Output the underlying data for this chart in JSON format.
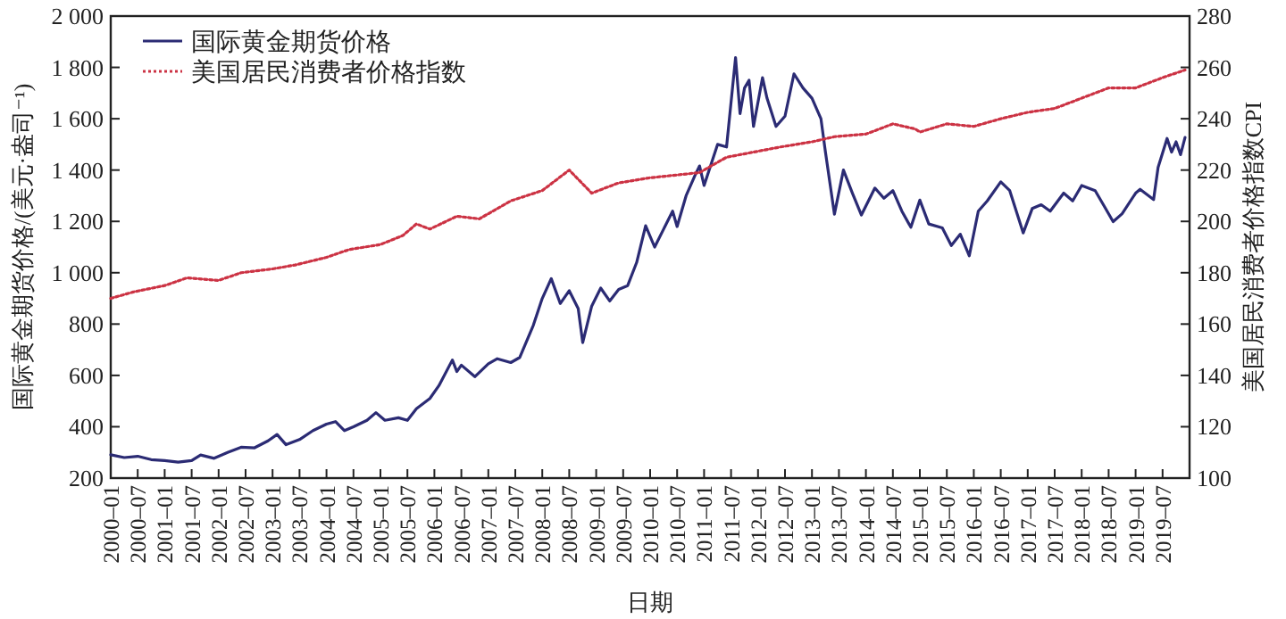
{
  "chart_data": {
    "type": "line",
    "xlabel": "日期",
    "ylabel": "国际黄金期货价格/(美元·盎司⁻¹)",
    "y2label": "美国居民消费者价格指数CPI",
    "legend": "top left",
    "xlim": [
      "2000-01",
      "2020-01"
    ],
    "ylim": [
      200,
      2000
    ],
    "y2lim": [
      100,
      280
    ],
    "xticks": [
      {
        "value": "2000-01",
        "label": "2000–01"
      },
      {
        "value": "2000-07",
        "label": "2000–07"
      },
      {
        "value": "2001-01",
        "label": "2001–01"
      },
      {
        "value": "2001-07",
        "label": "2001–07"
      },
      {
        "value": "2002-01",
        "label": "2002–01"
      },
      {
        "value": "2002-07",
        "label": "2002–07"
      },
      {
        "value": "2003-01",
        "label": "2003–01"
      },
      {
        "value": "2003-07",
        "label": "2003–07"
      },
      {
        "value": "2004-01",
        "label": "2004–01"
      },
      {
        "value": "2004-07",
        "label": "2004–07"
      },
      {
        "value": "2005-01",
        "label": "2005–01"
      },
      {
        "value": "2005-07",
        "label": "2005–07"
      },
      {
        "value": "2006-01",
        "label": "2006–01"
      },
      {
        "value": "2006-07",
        "label": "2006–07"
      },
      {
        "value": "2007-01",
        "label": "2007–01"
      },
      {
        "value": "2007-07",
        "label": "2007–07"
      },
      {
        "value": "2008-01",
        "label": "2008–01"
      },
      {
        "value": "2008-07",
        "label": "2008–07"
      },
      {
        "value": "2009-01",
        "label": "2009–01"
      },
      {
        "value": "2009-07",
        "label": "2009–07"
      },
      {
        "value": "2010-01",
        "label": "2010–01"
      },
      {
        "value": "2010-07",
        "label": "2010–07"
      },
      {
        "value": "2011-01",
        "label": "2011–01"
      },
      {
        "value": "2011-07",
        "label": "2011–07"
      },
      {
        "value": "2012-01",
        "label": "2012–01"
      },
      {
        "value": "2012-07",
        "label": "2012–07"
      },
      {
        "value": "2013-01",
        "label": "2013–01"
      },
      {
        "value": "2013-07",
        "label": "2013–07"
      },
      {
        "value": "2014-01",
        "label": "2014–01"
      },
      {
        "value": "2014-07",
        "label": "2014–07"
      },
      {
        "value": "2015-01",
        "label": "2015–01"
      },
      {
        "value": "2015-07",
        "label": "2015–07"
      },
      {
        "value": "2016-01",
        "label": "2016–01"
      },
      {
        "value": "2016-07",
        "label": "2016–07"
      },
      {
        "value": "2017-01",
        "label": "2017–01"
      },
      {
        "value": "2017-07",
        "label": "2017–07"
      },
      {
        "value": "2018-01",
        "label": "2018–01"
      },
      {
        "value": "2018-07",
        "label": "2018–07"
      },
      {
        "value": "2019-01",
        "label": "2019–01"
      },
      {
        "value": "2019-07",
        "label": "2019–07"
      }
    ],
    "yticks": [
      {
        "value": 200,
        "label": "200"
      },
      {
        "value": 400,
        "label": "400"
      },
      {
        "value": 600,
        "label": "600"
      },
      {
        "value": 800,
        "label": "800"
      },
      {
        "value": 1000,
        "label": "1 000"
      },
      {
        "value": 1200,
        "label": "1 200"
      },
      {
        "value": 1400,
        "label": "1 400"
      },
      {
        "value": 1600,
        "label": "1 600"
      },
      {
        "value": 1800,
        "label": "1 800"
      },
      {
        "value": 2000,
        "label": "2 000"
      }
    ],
    "y2ticks": [
      100,
      120,
      140,
      160,
      180,
      200,
      220,
      240,
      260,
      280
    ],
    "series": [
      {
        "name": "国际黄金期货价格",
        "color": "#2b2b74",
        "line_style": "solid",
        "x": [
          "2000-01",
          "2000-04",
          "2000-07",
          "2000-10",
          "2001-01",
          "2001-04",
          "2001-07",
          "2001-09",
          "2001-12",
          "2002-03",
          "2002-06",
          "2002-09",
          "2002-12",
          "2003-02",
          "2003-04",
          "2003-07",
          "2003-10",
          "2004-01",
          "2004-03",
          "2004-05",
          "2004-07",
          "2004-10",
          "2004-12",
          "2005-02",
          "2005-05",
          "2005-07",
          "2005-09",
          "2005-12",
          "2006-02",
          "2006-05",
          "2006-06",
          "2006-07",
          "2006-10",
          "2007-01",
          "2007-03",
          "2007-06",
          "2007-08",
          "2007-11",
          "2008-01",
          "2008-03",
          "2008-05",
          "2008-07",
          "2008-09",
          "2008-10",
          "2008-12",
          "2009-02",
          "2009-04",
          "2009-06",
          "2009-08",
          "2009-10",
          "2009-12",
          "2010-02",
          "2010-04",
          "2010-06",
          "2010-07",
          "2010-09",
          "2010-11",
          "2010-12",
          "2011-01",
          "2011-04",
          "2011-06",
          "2011-08",
          "2011-09",
          "2011-10",
          "2011-11",
          "2011-12",
          "2012-02",
          "2012-03",
          "2012-05",
          "2012-07",
          "2012-09",
          "2012-11",
          "2013-01",
          "2013-03",
          "2013-04",
          "2013-06",
          "2013-08",
          "2013-10",
          "2013-12",
          "2014-03",
          "2014-05",
          "2014-07",
          "2014-09",
          "2014-11",
          "2015-01",
          "2015-03",
          "2015-06",
          "2015-08",
          "2015-10",
          "2015-12",
          "2016-02",
          "2016-04",
          "2016-07",
          "2016-09",
          "2016-12",
          "2017-02",
          "2017-04",
          "2017-06",
          "2017-09",
          "2017-11",
          "2018-01",
          "2018-04",
          "2018-06",
          "2018-08",
          "2018-10",
          "2019-01",
          "2019-02",
          "2019-05",
          "2019-06",
          "2019-08",
          "2019-09",
          "2019-10",
          "2019-11",
          "2019-12"
        ],
        "values": [
          291,
          280,
          285,
          272,
          268,
          262,
          268,
          290,
          277,
          300,
          320,
          318,
          345,
          370,
          330,
          350,
          385,
          410,
          420,
          385,
          400,
          425,
          455,
          425,
          435,
          425,
          470,
          510,
          560,
          660,
          615,
          640,
          595,
          645,
          665,
          650,
          670,
          795,
          900,
          977,
          880,
          930,
          860,
          728,
          870,
          940,
          890,
          935,
          950,
          1040,
          1183,
          1100,
          1170,
          1240,
          1180,
          1300,
          1380,
          1416,
          1340,
          1500,
          1490,
          1838,
          1620,
          1720,
          1750,
          1570,
          1760,
          1680,
          1570,
          1610,
          1775,
          1720,
          1680,
          1600,
          1470,
          1228,
          1400,
          1310,
          1225,
          1330,
          1290,
          1320,
          1240,
          1177,
          1283,
          1190,
          1175,
          1106,
          1150,
          1066,
          1240,
          1280,
          1354,
          1320,
          1155,
          1250,
          1265,
          1240,
          1310,
          1280,
          1340,
          1320,
          1260,
          1199,
          1230,
          1310,
          1325,
          1285,
          1410,
          1523,
          1470,
          1510,
          1460,
          1527
        ]
      },
      {
        "name": "美国居民消费者价格指数",
        "color": "#cc3344",
        "line_style": "dotted",
        "axis": "y2",
        "x": [
          "2000-01",
          "2000-06",
          "2001-01",
          "2001-06",
          "2002-01",
          "2002-06",
          "2003-01",
          "2003-06",
          "2004-01",
          "2004-06",
          "2005-01",
          "2005-06",
          "2005-09",
          "2005-12",
          "2006-06",
          "2006-11",
          "2007-06",
          "2008-01",
          "2008-07",
          "2008-12",
          "2009-06",
          "2010-01",
          "2010-12",
          "2011-06",
          "2012-06",
          "2013-01",
          "2013-06",
          "2014-01",
          "2014-07",
          "2014-12",
          "2015-01",
          "2015-07",
          "2016-01",
          "2016-07",
          "2017-01",
          "2017-07",
          "2018-01",
          "2018-07",
          "2019-01",
          "2019-07",
          "2019-12"
        ],
        "values": [
          170,
          172.5,
          175,
          178,
          177,
          180,
          181.5,
          183,
          186,
          189,
          191,
          194.5,
          199,
          197,
          202,
          201,
          208,
          212,
          220,
          211,
          215,
          217,
          219,
          225,
          229,
          231,
          233,
          234,
          238,
          236,
          234.8,
          238,
          237,
          240,
          242.5,
          244,
          248,
          252,
          252,
          256,
          259
        ]
      }
    ]
  }
}
